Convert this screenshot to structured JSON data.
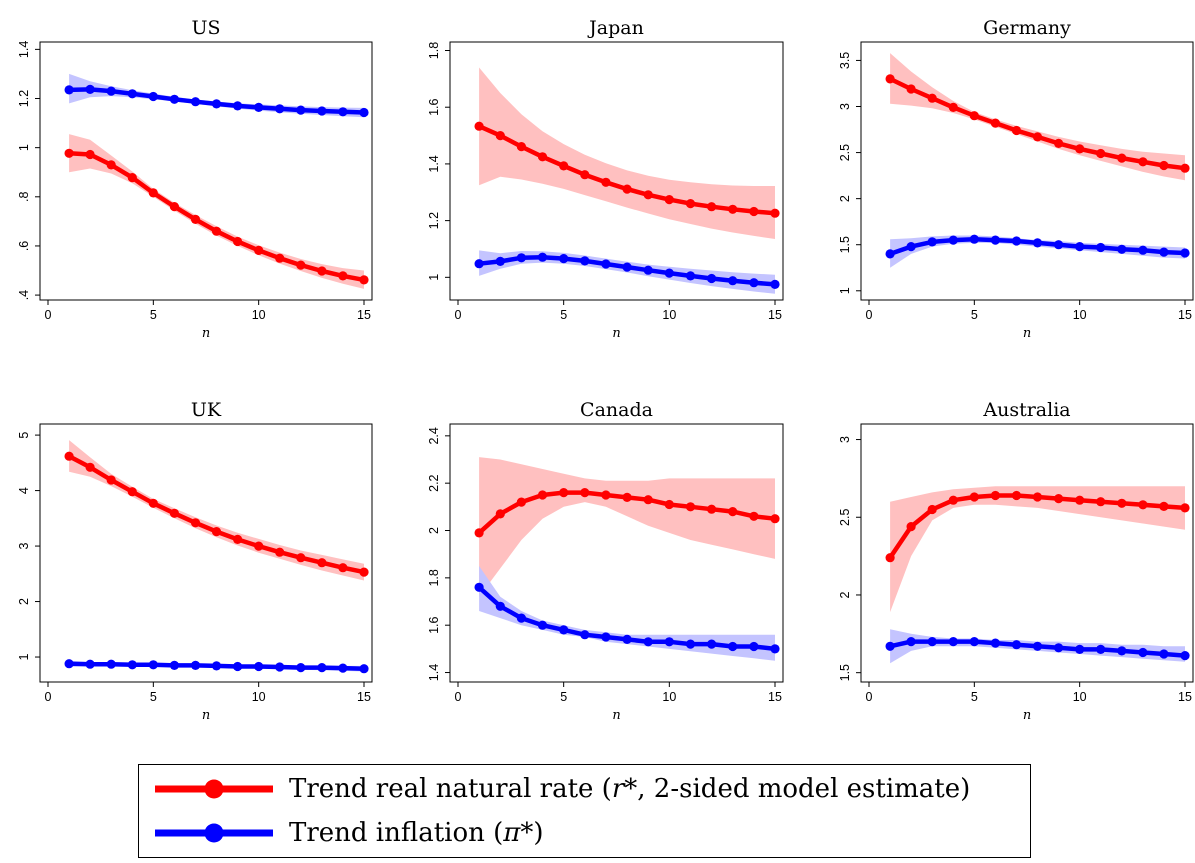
{
  "chart_data": [
    {
      "type": "line",
      "title": "US",
      "xlabel": "n",
      "x": [
        1,
        2,
        3,
        4,
        5,
        6,
        7,
        8,
        9,
        10,
        11,
        12,
        13,
        14,
        15
      ],
      "xlim": [
        0,
        15
      ],
      "ylim": [
        0.38,
        1.43
      ],
      "xticks": [
        0,
        5,
        10,
        15
      ],
      "xtick_labels": [
        "0",
        "5",
        "10",
        "15"
      ],
      "yticks": [
        0.4,
        0.6,
        0.8,
        1.0,
        1.2,
        1.4
      ],
      "ytick_labels": [
        ".4",
        ".6",
        ".8",
        "1",
        "1.2",
        "1.4"
      ],
      "grid": false,
      "series": [
        {
          "name": "r_star",
          "color": "#ff0000",
          "values": [
            0.977,
            0.972,
            0.93,
            0.878,
            0.816,
            0.76,
            0.708,
            0.66,
            0.618,
            0.582,
            0.55,
            0.522,
            0.498,
            0.478,
            0.462
          ],
          "lower": [
            0.9,
            0.915,
            0.895,
            0.855,
            0.8,
            0.744,
            0.69,
            0.642,
            0.6,
            0.562,
            0.528,
            0.498,
            0.47,
            0.446,
            0.425
          ],
          "upper": [
            1.055,
            1.032,
            0.968,
            0.903,
            0.832,
            0.776,
            0.726,
            0.68,
            0.638,
            0.603,
            0.573,
            0.547,
            0.526,
            0.51,
            0.5
          ]
        },
        {
          "name": "pi_star",
          "color": "#0000ff",
          "values": [
            1.235,
            1.237,
            1.23,
            1.219,
            1.208,
            1.197,
            1.187,
            1.178,
            1.17,
            1.164,
            1.158,
            1.153,
            1.149,
            1.146,
            1.143
          ],
          "lower": [
            1.18,
            1.205,
            1.21,
            1.205,
            1.197,
            1.188,
            1.178,
            1.168,
            1.159,
            1.151,
            1.144,
            1.138,
            1.133,
            1.128,
            1.124
          ],
          "upper": [
            1.3,
            1.27,
            1.25,
            1.234,
            1.22,
            1.207,
            1.196,
            1.188,
            1.181,
            1.176,
            1.172,
            1.168,
            1.165,
            1.163,
            1.162
          ]
        }
      ]
    },
    {
      "type": "line",
      "title": "Japan",
      "xlabel": "n",
      "x": [
        1,
        2,
        3,
        4,
        5,
        6,
        7,
        8,
        9,
        10,
        11,
        12,
        13,
        14,
        15
      ],
      "xlim": [
        0,
        15
      ],
      "ylim": [
        0.92,
        1.83
      ],
      "xticks": [
        0,
        5,
        10,
        15
      ],
      "xtick_labels": [
        "0",
        "5",
        "10",
        "15"
      ],
      "yticks": [
        1.0,
        1.2,
        1.4,
        1.6,
        1.8
      ],
      "ytick_labels": [
        "1",
        "1.2",
        "1.4",
        "1.6",
        "1.8"
      ],
      "grid": false,
      "series": [
        {
          "name": "r_star",
          "color": "#ff0000",
          "values": [
            1.533,
            1.5,
            1.461,
            1.425,
            1.393,
            1.362,
            1.335,
            1.311,
            1.291,
            1.274,
            1.26,
            1.249,
            1.24,
            1.232,
            1.226
          ],
          "lower": [
            1.325,
            1.355,
            1.345,
            1.33,
            1.312,
            1.29,
            1.268,
            1.246,
            1.225,
            1.205,
            1.188,
            1.172,
            1.158,
            1.146,
            1.135
          ],
          "upper": [
            1.74,
            1.65,
            1.575,
            1.515,
            1.47,
            1.432,
            1.402,
            1.377,
            1.358,
            1.344,
            1.335,
            1.328,
            1.324,
            1.322,
            1.322
          ]
        },
        {
          "name": "pi_star",
          "color": "#0000ff",
          "values": [
            1.048,
            1.056,
            1.069,
            1.071,
            1.066,
            1.058,
            1.047,
            1.036,
            1.025,
            1.015,
            1.005,
            0.996,
            0.988,
            0.981,
            0.975
          ],
          "lower": [
            1.005,
            1.03,
            1.048,
            1.052,
            1.048,
            1.04,
            1.029,
            1.017,
            1.004,
            0.992,
            0.98,
            0.969,
            0.959,
            0.95,
            0.942
          ],
          "upper": [
            1.095,
            1.085,
            1.093,
            1.092,
            1.086,
            1.077,
            1.066,
            1.055,
            1.045,
            1.037,
            1.03,
            1.024,
            1.018,
            1.013,
            1.009
          ]
        }
      ]
    },
    {
      "type": "line",
      "title": "Germany",
      "xlabel": "n",
      "x": [
        1,
        2,
        3,
        4,
        5,
        6,
        7,
        8,
        9,
        10,
        11,
        12,
        13,
        14,
        15
      ],
      "xlim": [
        0,
        15
      ],
      "ylim": [
        0.9,
        3.7
      ],
      "xticks": [
        0,
        5,
        10,
        15
      ],
      "xtick_labels": [
        "0",
        "5",
        "10",
        "15"
      ],
      "yticks": [
        1.0,
        1.5,
        2.0,
        2.5,
        3.0,
        3.5
      ],
      "ytick_labels": [
        "1",
        "1.5",
        "2",
        "2.5",
        "3",
        "3.5"
      ],
      "grid": false,
      "series": [
        {
          "name": "r_star",
          "color": "#ff0000",
          "values": [
            3.3,
            3.19,
            3.09,
            2.99,
            2.9,
            2.82,
            2.74,
            2.67,
            2.6,
            2.54,
            2.49,
            2.44,
            2.4,
            2.36,
            2.33
          ],
          "lower": [
            3.03,
            3.01,
            2.98,
            2.93,
            2.86,
            2.78,
            2.7,
            2.62,
            2.54,
            2.47,
            2.41,
            2.35,
            2.29,
            2.24,
            2.2
          ],
          "upper": [
            3.58,
            3.38,
            3.21,
            3.06,
            2.94,
            2.86,
            2.79,
            2.73,
            2.67,
            2.62,
            2.58,
            2.54,
            2.51,
            2.49,
            2.47
          ]
        },
        {
          "name": "pi_star",
          "color": "#0000ff",
          "values": [
            1.4,
            1.48,
            1.53,
            1.55,
            1.56,
            1.55,
            1.54,
            1.52,
            1.5,
            1.48,
            1.47,
            1.45,
            1.44,
            1.42,
            1.41
          ],
          "lower": [
            1.25,
            1.4,
            1.48,
            1.51,
            1.52,
            1.52,
            1.5,
            1.48,
            1.46,
            1.44,
            1.42,
            1.4,
            1.38,
            1.36,
            1.35
          ],
          "upper": [
            1.56,
            1.57,
            1.59,
            1.6,
            1.6,
            1.59,
            1.57,
            1.55,
            1.54,
            1.52,
            1.51,
            1.5,
            1.49,
            1.48,
            1.47
          ]
        }
      ]
    },
    {
      "type": "line",
      "title": "UK",
      "xlabel": "n",
      "x": [
        1,
        2,
        3,
        4,
        5,
        6,
        7,
        8,
        9,
        10,
        11,
        12,
        13,
        14,
        15
      ],
      "xlim": [
        0,
        15
      ],
      "ylim": [
        0.55,
        5.2
      ],
      "xticks": [
        0,
        5,
        10,
        15
      ],
      "xtick_labels": [
        "0",
        "5",
        "10",
        "15"
      ],
      "yticks": [
        1,
        2,
        3,
        4,
        5
      ],
      "ytick_labels": [
        "1",
        "2",
        "3",
        "4",
        "5"
      ],
      "grid": false,
      "series": [
        {
          "name": "r_star",
          "color": "#ff0000",
          "values": [
            4.62,
            4.42,
            4.19,
            3.98,
            3.77,
            3.59,
            3.42,
            3.26,
            3.12,
            3.0,
            2.89,
            2.79,
            2.7,
            2.61,
            2.53
          ],
          "lower": [
            4.34,
            4.25,
            4.08,
            3.89,
            3.69,
            3.5,
            3.32,
            3.16,
            3.01,
            2.88,
            2.77,
            2.66,
            2.56,
            2.47,
            2.38
          ],
          "upper": [
            4.91,
            4.6,
            4.3,
            4.07,
            3.85,
            3.68,
            3.52,
            3.37,
            3.24,
            3.13,
            3.02,
            2.92,
            2.84,
            2.76,
            2.68
          ]
        },
        {
          "name": "pi_star",
          "color": "#0000ff",
          "values": [
            0.88,
            0.87,
            0.87,
            0.86,
            0.86,
            0.85,
            0.85,
            0.84,
            0.83,
            0.83,
            0.82,
            0.81,
            0.81,
            0.8,
            0.79
          ],
          "lower": [
            0.83,
            0.84,
            0.84,
            0.83,
            0.83,
            0.82,
            0.82,
            0.81,
            0.8,
            0.79,
            0.78,
            0.77,
            0.76,
            0.75,
            0.74
          ],
          "upper": [
            0.93,
            0.91,
            0.9,
            0.89,
            0.89,
            0.88,
            0.88,
            0.87,
            0.86,
            0.86,
            0.85,
            0.85,
            0.85,
            0.84,
            0.84
          ]
        }
      ]
    },
    {
      "type": "line",
      "title": "Canada",
      "xlabel": "n",
      "x": [
        1,
        2,
        3,
        4,
        5,
        6,
        7,
        8,
        9,
        10,
        11,
        12,
        13,
        14,
        15
      ],
      "xlim": [
        0,
        15
      ],
      "ylim": [
        1.36,
        2.45
      ],
      "xticks": [
        0,
        5,
        10,
        15
      ],
      "xtick_labels": [
        "0",
        "5",
        "10",
        "15"
      ],
      "yticks": [
        1.4,
        1.6,
        1.8,
        2.0,
        2.2,
        2.4
      ],
      "ytick_labels": [
        "1.4",
        "1.6",
        "1.8",
        "2",
        "2.2",
        "2.4"
      ],
      "grid": false,
      "series": [
        {
          "name": "r_star",
          "color": "#ff0000",
          "values": [
            1.99,
            2.07,
            2.12,
            2.15,
            2.16,
            2.16,
            2.15,
            2.14,
            2.13,
            2.11,
            2.1,
            2.09,
            2.08,
            2.06,
            2.05
          ],
          "lower": [
            1.72,
            1.84,
            1.96,
            2.05,
            2.1,
            2.12,
            2.1,
            2.06,
            2.02,
            1.99,
            1.96,
            1.94,
            1.92,
            1.9,
            1.88
          ],
          "upper": [
            2.31,
            2.3,
            2.28,
            2.26,
            2.24,
            2.22,
            2.21,
            2.21,
            2.21,
            2.22,
            2.22,
            2.22,
            2.22,
            2.22,
            2.22
          ]
        },
        {
          "name": "pi_star",
          "color": "#0000ff",
          "values": [
            1.76,
            1.68,
            1.63,
            1.6,
            1.58,
            1.56,
            1.55,
            1.54,
            1.53,
            1.53,
            1.52,
            1.52,
            1.51,
            1.51,
            1.5
          ],
          "lower": [
            1.66,
            1.63,
            1.6,
            1.58,
            1.56,
            1.55,
            1.53,
            1.52,
            1.51,
            1.5,
            1.49,
            1.48,
            1.47,
            1.46,
            1.45
          ],
          "upper": [
            1.85,
            1.72,
            1.66,
            1.62,
            1.6,
            1.58,
            1.57,
            1.56,
            1.56,
            1.56,
            1.56,
            1.56,
            1.56,
            1.56,
            1.56
          ]
        }
      ]
    },
    {
      "type": "line",
      "title": "Australia",
      "xlabel": "n",
      "x": [
        1,
        2,
        3,
        4,
        5,
        6,
        7,
        8,
        9,
        10,
        11,
        12,
        13,
        14,
        15
      ],
      "xlim": [
        0,
        15
      ],
      "ylim": [
        1.44,
        3.1
      ],
      "xticks": [
        0,
        5,
        10,
        15
      ],
      "xtick_labels": [
        "0",
        "5",
        "10",
        "15"
      ],
      "yticks": [
        1.5,
        2.0,
        2.5,
        3.0
      ],
      "ytick_labels": [
        "1.5",
        "2",
        "2.5",
        "3"
      ],
      "grid": false,
      "series": [
        {
          "name": "r_star",
          "color": "#ff0000",
          "values": [
            2.24,
            2.44,
            2.55,
            2.61,
            2.63,
            2.64,
            2.64,
            2.63,
            2.62,
            2.61,
            2.6,
            2.59,
            2.58,
            2.57,
            2.56
          ],
          "lower": [
            1.89,
            2.25,
            2.48,
            2.56,
            2.58,
            2.58,
            2.57,
            2.56,
            2.54,
            2.52,
            2.5,
            2.48,
            2.46,
            2.44,
            2.42
          ],
          "upper": [
            2.6,
            2.63,
            2.66,
            2.68,
            2.69,
            2.7,
            2.7,
            2.7,
            2.7,
            2.7,
            2.7,
            2.7,
            2.7,
            2.7,
            2.7
          ]
        },
        {
          "name": "pi_star",
          "color": "#0000ff",
          "values": [
            1.67,
            1.7,
            1.7,
            1.7,
            1.7,
            1.69,
            1.68,
            1.67,
            1.66,
            1.65,
            1.65,
            1.64,
            1.63,
            1.62,
            1.61
          ],
          "lower": [
            1.56,
            1.64,
            1.67,
            1.67,
            1.67,
            1.66,
            1.65,
            1.64,
            1.63,
            1.62,
            1.61,
            1.6,
            1.59,
            1.58,
            1.57
          ],
          "upper": [
            1.78,
            1.75,
            1.73,
            1.72,
            1.72,
            1.71,
            1.71,
            1.7,
            1.7,
            1.69,
            1.69,
            1.68,
            1.68,
            1.67,
            1.67
          ]
        }
      ]
    }
  ],
  "legend": {
    "items": [
      {
        "color": "#ff0000",
        "label_prefix": "Trend real natural rate (",
        "symbol": "r*",
        "label_suffix": ", 2-sided model estimate)"
      },
      {
        "color": "#0000ff",
        "label_prefix": "Trend inflation (",
        "symbol": "π*",
        "label_suffix": ")"
      }
    ]
  },
  "colors": {
    "r_band": "#ffc0c0",
    "pi_band": "#c4c4ff"
  }
}
